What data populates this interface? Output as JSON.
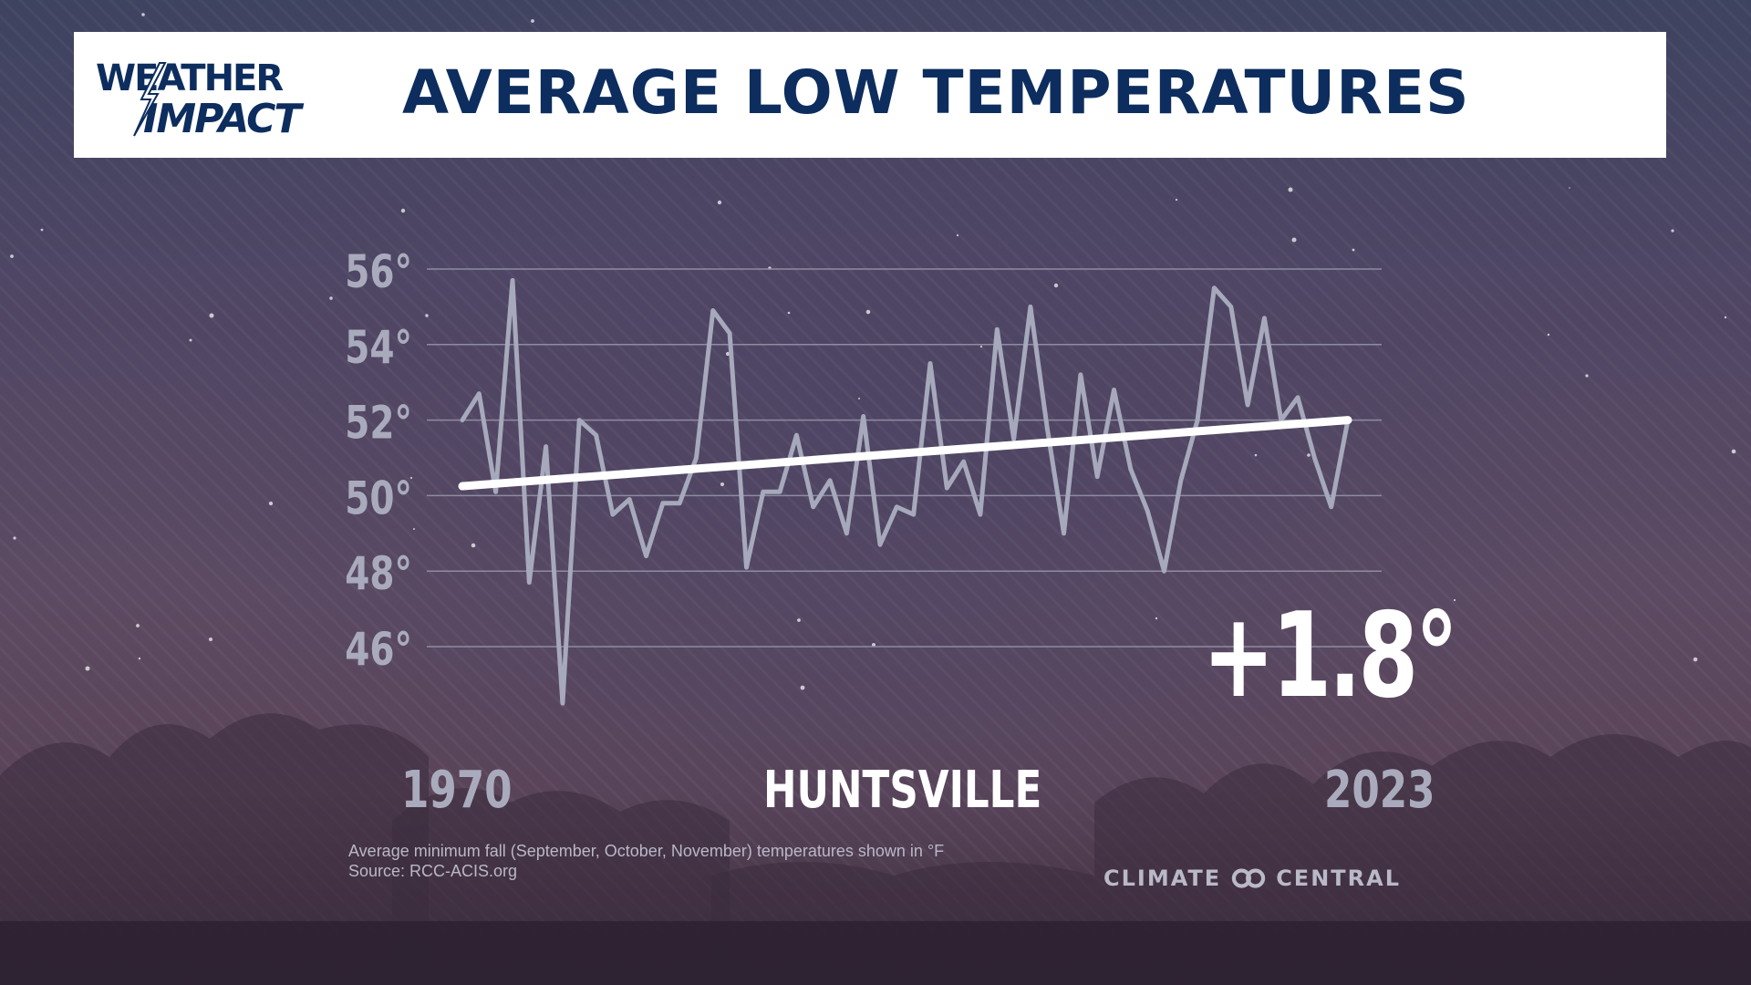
{
  "header": {
    "logo_line1": "WEATHER",
    "logo_line2": "IMPACT",
    "title": "AVERAGE LOW TEMPERATURES"
  },
  "chart_data": {
    "type": "line",
    "title": "AVERAGE LOW TEMPERATURES",
    "xlabel": "",
    "ylabel": "",
    "x_start_label": "1970",
    "x_end_label": "2023",
    "yticks": [
      "46°",
      "48°",
      "50°",
      "52°",
      "54°",
      "56°"
    ],
    "ylim": [
      46,
      56
    ],
    "grid": true,
    "x": [
      1970,
      1971,
      1972,
      1973,
      1974,
      1975,
      1976,
      1977,
      1978,
      1979,
      1980,
      1981,
      1982,
      1983,
      1984,
      1985,
      1986,
      1987,
      1988,
      1989,
      1990,
      1991,
      1992,
      1993,
      1994,
      1995,
      1996,
      1997,
      1998,
      1999,
      2000,
      2001,
      2002,
      2003,
      2004,
      2005,
      2006,
      2007,
      2008,
      2009,
      2010,
      2011,
      2012,
      2013,
      2014,
      2015,
      2016,
      2017,
      2018,
      2019,
      2020,
      2021,
      2022,
      2023
    ],
    "series": [
      {
        "values": [
          52.0,
          52.7,
          50.1,
          55.7,
          47.7,
          51.3,
          44.5,
          52.0,
          51.6,
          49.5,
          49.9,
          48.4,
          49.8,
          49.8,
          51.0,
          54.9,
          54.3,
          48.1,
          50.1,
          50.1,
          51.6,
          49.7,
          50.4,
          49.0,
          52.1,
          48.7,
          49.7,
          49.5,
          53.5,
          50.2,
          50.9,
          49.5,
          54.4,
          51.5,
          55.0,
          51.8,
          49.0,
          53.2,
          50.5,
          52.8,
          50.7,
          49.6,
          48.0,
          50.4,
          52.0,
          55.5,
          55.0,
          52.4,
          54.7,
          52.0,
          52.6,
          51.0,
          49.7,
          52.0
        ]
      },
      {
        "type": "trend",
        "values_start": 50.25,
        "values_end": 52.0
      }
    ],
    "change_label": "+1.8°",
    "location": "HUNTSVILLE",
    "colors": {
      "line": "#a6a9bb",
      "trend": "#ffffff",
      "grid": "#8d8ca0",
      "tick": "#a9abbd"
    }
  },
  "footer": {
    "note_line1": "Average minimum fall (September, October, November) temperatures shown in °F",
    "note_line2": "Source: RCC-ACIS.org",
    "brand_left": "CLIMATE",
    "brand_right": "CENTRAL"
  },
  "colors": {
    "title": "#0d2d5e",
    "header_bg": "#ffffff"
  }
}
